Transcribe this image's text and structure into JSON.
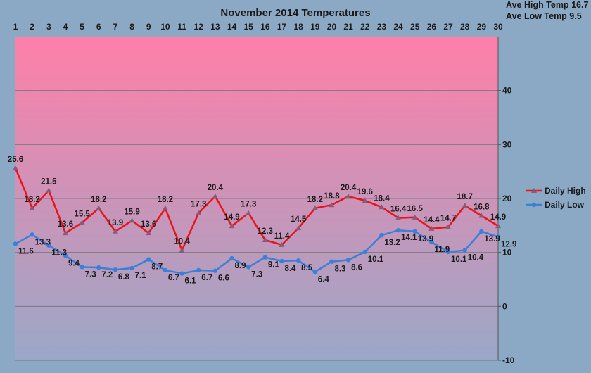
{
  "chart_data": {
    "type": "line",
    "title": "November 2014 Temperatures",
    "stats": [
      "Ave High Temp 16.7",
      "Ave Low Temp 9.5"
    ],
    "categories": [
      "1",
      "2",
      "3",
      "4",
      "5",
      "6",
      "7",
      "8",
      "9",
      "10",
      "11",
      "12",
      "13",
      "14",
      "15",
      "16",
      "17",
      "18",
      "19",
      "20",
      "21",
      "22",
      "23",
      "24",
      "25",
      "26",
      "27",
      "28",
      "29",
      "30"
    ],
    "series": [
      {
        "name": "Daily High",
        "color": "#e8141c",
        "marker": "triangle",
        "marker_color": "#8a5a7a",
        "values": [
          25.6,
          18.2,
          21.5,
          13.6,
          15.5,
          18.2,
          13.9,
          15.9,
          13.6,
          18.2,
          10.4,
          17.3,
          20.4,
          14.9,
          17.3,
          12.3,
          11.4,
          14.5,
          18.2,
          18.8,
          20.4,
          19.6,
          18.4,
          16.4,
          16.5,
          14.4,
          14.7,
          18.7,
          16.8,
          14.9
        ]
      },
      {
        "name": "Daily Low",
        "color": "#3a7fd8",
        "marker": "circle",
        "marker_color": "#3a7fd8",
        "values": [
          11.6,
          13.3,
          11.3,
          9.4,
          7.3,
          7.2,
          6.8,
          7.1,
          8.7,
          6.7,
          6.1,
          6.7,
          6.6,
          8.9,
          7.3,
          9.1,
          8.4,
          8.5,
          6.4,
          8.3,
          8.6,
          10.1,
          13.2,
          14.1,
          13.9,
          11.9,
          10.1,
          10.4,
          13.9,
          12.9
        ]
      }
    ],
    "data_labels": {
      "high": [
        "25.6",
        "18.2",
        "21.5",
        "13.6",
        "15.5",
        "18.2",
        "13.9",
        "15.9",
        "13.6",
        "18.2",
        "10.4",
        "17.3",
        "20.4",
        "14.9",
        "17.3",
        "12.3",
        "11.4",
        "14.5",
        "18.2",
        "18.8",
        "20.4",
        "19.6",
        "18.4",
        "16.4",
        "16.5",
        "14.4",
        "14.7",
        "18.7",
        "16.8",
        "14.9"
      ],
      "low": [
        "11.6",
        "13.3",
        "11.3",
        "9.4",
        "7.3",
        "7.2",
        "6.8",
        "7.1",
        "8.7",
        "6.7",
        "6.1",
        "6.7",
        "6.6",
        "8.9",
        "7.3",
        "9.1",
        "8.4",
        "8.5",
        "6.4",
        "8.3",
        "8.6",
        "10.1",
        "13.2",
        "14.1",
        "13.9",
        "11.9",
        "10.1",
        "10.4",
        "13.9",
        "12.9"
      ]
    },
    "yticks": [
      "-10",
      "0",
      "10",
      "20",
      "30",
      "40"
    ],
    "ylim": [
      -10,
      50
    ],
    "y_axis_side": "right",
    "x_axis_position": "top",
    "grid": true,
    "legend": "right",
    "plot_gradient": [
      "#ff7fa8",
      "#9aa8c8"
    ],
    "background": "#8ba9c4"
  }
}
